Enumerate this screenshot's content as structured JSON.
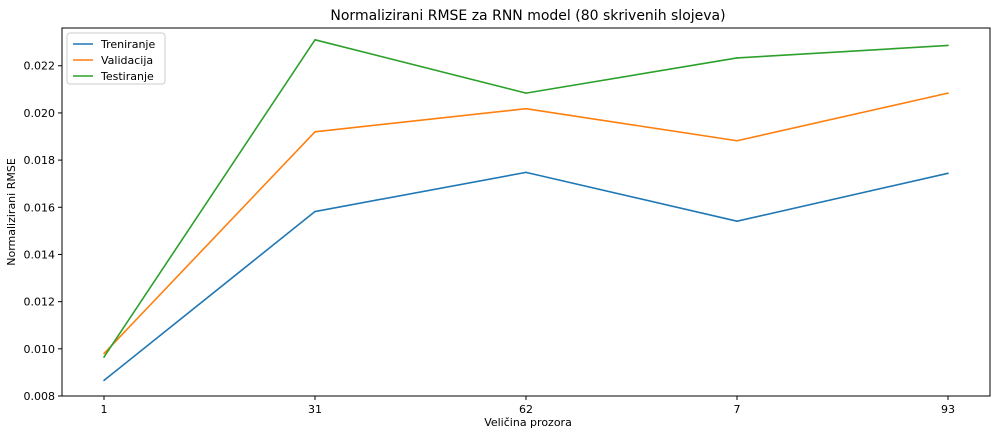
{
  "chart_data": {
    "type": "line",
    "title": "Normalizirani RMSE za RNN model (80 skrivenih slojeva)",
    "xlabel": "Veličina prozora",
    "ylabel": "Normalizirani RMSE",
    "categories": [
      "1",
      "31",
      "62",
      "7",
      "93"
    ],
    "ylim": [
      0.008,
      0.0236
    ],
    "yticks": [
      0.008,
      0.01,
      0.012,
      0.014,
      0.016,
      0.018,
      0.02,
      0.022
    ],
    "ytick_labels": [
      "0.008",
      "0.010",
      "0.012",
      "0.014",
      "0.016",
      "0.018",
      "0.020",
      "0.022"
    ],
    "grid": false,
    "legend_position": "top-left",
    "series": [
      {
        "name": "Treniranje",
        "color": "#1f77b4",
        "values": [
          0.00866,
          0.01582,
          0.01748,
          0.01541,
          0.01744
        ]
      },
      {
        "name": "Validacija",
        "color": "#ff7f0e",
        "values": [
          0.0098,
          0.0192,
          0.02018,
          0.01882,
          0.02084
        ]
      },
      {
        "name": "Testiranje",
        "color": "#2ca02c",
        "values": [
          0.00965,
          0.0231,
          0.02084,
          0.02233,
          0.02286
        ]
      }
    ]
  }
}
